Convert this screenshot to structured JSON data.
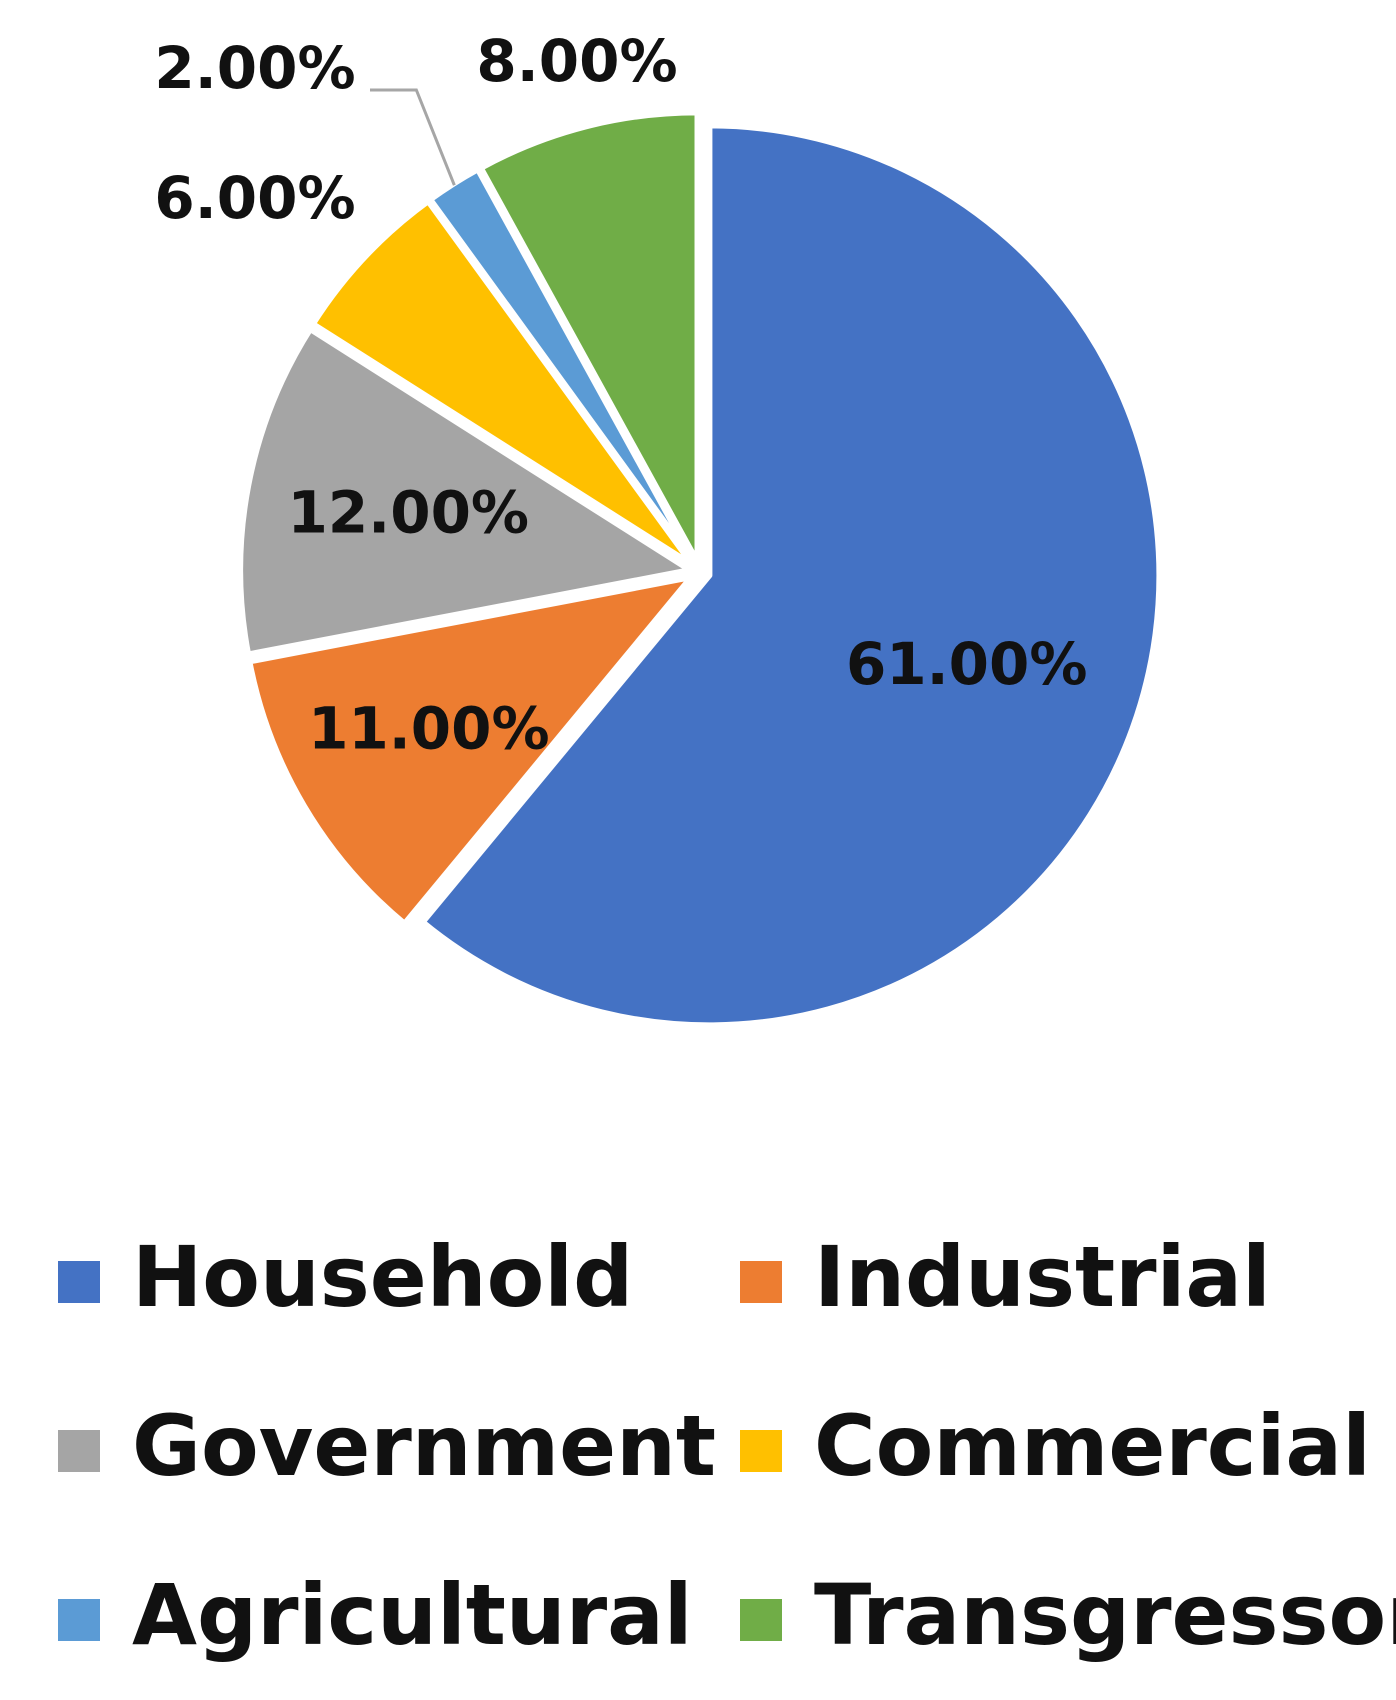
{
  "chart_data": {
    "type": "pie",
    "title": "",
    "categories": [
      "Household",
      "Industrial",
      "Government",
      "Commercial",
      "Agricultural",
      "Transgressors"
    ],
    "values": [
      61,
      11,
      12,
      6,
      2,
      8
    ],
    "labels": [
      "61.00%",
      "11.00%",
      "12.00%",
      "6.00%",
      "2.00%",
      "8.00%"
    ],
    "colors": [
      "#4472C4",
      "#ED7D31",
      "#A5A5A5",
      "#FFC000",
      "#5B9BD5",
      "#70AD47"
    ],
    "start": "12 o'clock",
    "direction": "clockwise",
    "legend": {
      "position": "bottom",
      "columns": 2,
      "items": [
        "Household",
        "Industrial",
        "Government",
        "Commercial",
        "Agricultural",
        "Transgressors"
      ]
    }
  }
}
